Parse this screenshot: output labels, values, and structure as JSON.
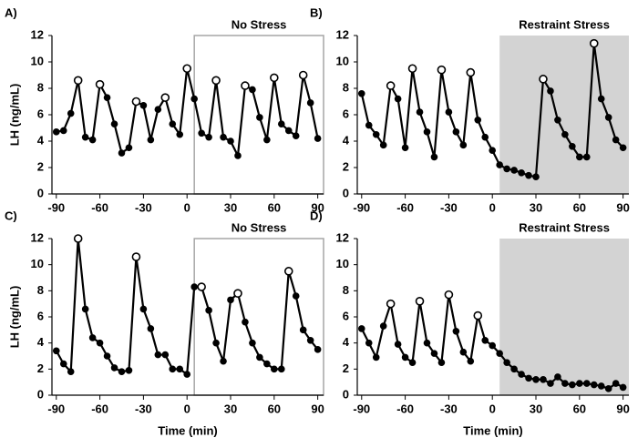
{
  "chart_data": [
    {
      "type": "line",
      "panel": "A)",
      "region_label": "No Stress",
      "region": [
        5,
        94
      ],
      "region_filled": false,
      "ylabel": "LH (ng/mL)",
      "x": [
        -90,
        -85,
        -80,
        -75,
        -70,
        -65,
        -60,
        -55,
        -50,
        -45,
        -40,
        -35,
        -30,
        -25,
        -20,
        -15,
        -10,
        -5,
        0,
        5,
        10,
        15,
        20,
        25,
        30,
        35,
        40,
        45,
        50,
        55,
        60,
        65,
        70,
        75,
        80,
        85,
        90
      ],
      "values": [
        4.7,
        4.8,
        6.1,
        8.6,
        4.3,
        4.1,
        8.3,
        7.3,
        5.3,
        3.1,
        3.5,
        7.0,
        6.7,
        4.1,
        6.4,
        7.3,
        5.3,
        4.5,
        9.5,
        7.2,
        4.6,
        4.3,
        8.6,
        4.3,
        4.0,
        2.9,
        8.2,
        7.9,
        5.8,
        4.1,
        8.8,
        5.3,
        4.8,
        4.4,
        9.0,
        6.9,
        4.2
      ],
      "open_markers": [
        false,
        false,
        false,
        true,
        false,
        false,
        true,
        false,
        false,
        false,
        false,
        true,
        false,
        false,
        false,
        true,
        false,
        false,
        true,
        false,
        false,
        false,
        true,
        false,
        false,
        false,
        true,
        false,
        false,
        false,
        true,
        false,
        false,
        false,
        true,
        false,
        false
      ],
      "color": "#000000",
      "xlim": [
        -93,
        94
      ],
      "ylim": [
        0,
        12
      ],
      "xticks": [
        -90,
        -60,
        -30,
        0,
        30,
        60,
        90
      ],
      "yticks": [
        0,
        2,
        4,
        6,
        8,
        10,
        12
      ]
    },
    {
      "type": "line",
      "panel": "B)",
      "region_label": "Restraint Stress",
      "region": [
        5,
        94
      ],
      "region_filled": true,
      "x": [
        -90,
        -85,
        -80,
        -75,
        -70,
        -65,
        -60,
        -55,
        -50,
        -45,
        -40,
        -35,
        -30,
        -25,
        -20,
        -15,
        -10,
        -5,
        0,
        5,
        10,
        15,
        20,
        25,
        30,
        35,
        40,
        45,
        50,
        55,
        60,
        65,
        70,
        75,
        80,
        85,
        90
      ],
      "values": [
        7.6,
        5.2,
        4.5,
        3.7,
        8.2,
        7.2,
        3.5,
        9.5,
        6.2,
        4.7,
        2.8,
        9.4,
        6.2,
        4.7,
        3.7,
        9.2,
        5.6,
        4.3,
        3.3,
        2.2,
        1.9,
        1.8,
        1.6,
        1.4,
        1.3,
        8.7,
        7.8,
        5.6,
        4.5,
        3.6,
        2.8,
        2.8,
        11.4,
        7.2,
        5.8,
        4.1,
        3.5
      ],
      "open_markers": [
        false,
        false,
        false,
        false,
        true,
        false,
        false,
        true,
        false,
        false,
        false,
        true,
        false,
        false,
        false,
        true,
        false,
        false,
        false,
        false,
        false,
        false,
        false,
        false,
        false,
        true,
        false,
        false,
        false,
        false,
        false,
        false,
        true,
        false,
        false,
        false,
        false
      ],
      "color": "#000000",
      "xlim": [
        -93,
        94
      ],
      "ylim": [
        0,
        12
      ],
      "xticks": [
        -90,
        -60,
        -30,
        0,
        30,
        60,
        90
      ],
      "yticks": [
        0,
        2,
        4,
        6,
        8,
        10,
        12
      ]
    },
    {
      "type": "line",
      "panel": "C)",
      "region_label": "No Stress",
      "region": [
        5,
        94
      ],
      "region_filled": false,
      "ylabel": "LH (ng/mL)",
      "xlabel": "Time (min)",
      "x": [
        -90,
        -85,
        -80,
        -75,
        -70,
        -65,
        -60,
        -55,
        -50,
        -45,
        -40,
        -35,
        -30,
        -25,
        -20,
        -15,
        -10,
        -5,
        0,
        5,
        10,
        15,
        20,
        25,
        30,
        35,
        40,
        45,
        50,
        55,
        60,
        65,
        70,
        75,
        80,
        85,
        90
      ],
      "values": [
        3.4,
        2.4,
        1.8,
        12.0,
        6.6,
        4.4,
        4.0,
        3.0,
        2.1,
        1.8,
        1.9,
        10.6,
        6.6,
        5.1,
        3.1,
        3.1,
        2.0,
        2.0,
        1.6,
        8.3,
        8.3,
        6.5,
        4.0,
        2.6,
        7.3,
        7.8,
        5.6,
        4.0,
        2.9,
        2.4,
        2.0,
        2.0,
        9.5,
        7.6,
        5.0,
        4.2,
        3.5
      ],
      "open_markers": [
        false,
        false,
        false,
        true,
        false,
        false,
        false,
        false,
        false,
        false,
        false,
        true,
        false,
        false,
        false,
        false,
        false,
        false,
        false,
        false,
        true,
        false,
        false,
        false,
        false,
        true,
        false,
        false,
        false,
        false,
        false,
        false,
        true,
        false,
        false,
        false,
        false
      ],
      "color": "#000000",
      "xlim": [
        -93,
        94
      ],
      "ylim": [
        0,
        12
      ],
      "xticks": [
        -90,
        -60,
        -30,
        0,
        30,
        60,
        90
      ],
      "yticks": [
        0,
        2,
        4,
        6,
        8,
        10,
        12
      ]
    },
    {
      "type": "line",
      "panel": "D)",
      "region_label": "Restraint Stress",
      "region": [
        5,
        94
      ],
      "region_filled": true,
      "xlabel": "Time (min)",
      "x": [
        -90,
        -85,
        -80,
        -75,
        -70,
        -65,
        -60,
        -55,
        -50,
        -45,
        -40,
        -35,
        -30,
        -25,
        -20,
        -15,
        -10,
        -5,
        0,
        5,
        10,
        15,
        20,
        25,
        30,
        35,
        40,
        45,
        50,
        55,
        60,
        65,
        70,
        75,
        80,
        85,
        90
      ],
      "values": [
        5.1,
        4.0,
        2.9,
        5.3,
        7.0,
        3.9,
        2.9,
        2.5,
        7.2,
        4.0,
        3.2,
        2.5,
        7.7,
        4.9,
        3.3,
        2.6,
        6.1,
        4.2,
        3.8,
        3.2,
        2.5,
        2.0,
        1.6,
        1.3,
        1.2,
        1.2,
        0.9,
        1.4,
        0.9,
        0.8,
        0.9,
        0.9,
        0.8,
        0.7,
        0.5,
        0.9,
        0.6
      ],
      "open_markers": [
        false,
        false,
        false,
        false,
        true,
        false,
        false,
        false,
        true,
        false,
        false,
        false,
        true,
        false,
        false,
        false,
        true,
        false,
        false,
        false,
        false,
        false,
        false,
        false,
        false,
        false,
        false,
        false,
        false,
        false,
        false,
        false,
        false,
        false,
        false,
        false,
        false
      ],
      "color": "#000000",
      "xlim": [
        -93,
        94
      ],
      "ylim": [
        0,
        12
      ],
      "xticks": [
        -90,
        -60,
        -30,
        0,
        30,
        60,
        90
      ],
      "yticks": [
        0,
        2,
        4,
        6,
        8,
        10,
        12
      ]
    }
  ]
}
